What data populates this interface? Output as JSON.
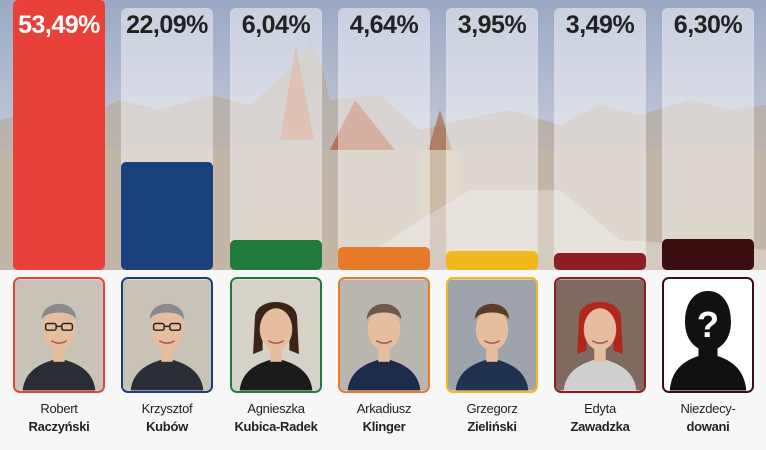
{
  "chart_data": {
    "type": "bar",
    "ylim": [
      0,
      55
    ],
    "categories": [
      {
        "first": "Robert",
        "last": "Raczyński"
      },
      {
        "first": "Krzysztof",
        "last": "Kubów"
      },
      {
        "first": "Agnieszka",
        "last": "Kubica-Radek"
      },
      {
        "first": "Arkadiusz",
        "last": "Klinger"
      },
      {
        "first": "Grzegorz",
        "last": "Zieliński"
      },
      {
        "first": "Edyta",
        "last": "Zawadzka"
      },
      {
        "first": "Niezdecy-",
        "last": "dowani"
      }
    ],
    "values": [
      53.49,
      22.09,
      6.04,
      4.64,
      3.95,
      3.49,
      6.3
    ],
    "value_labels": [
      "53,49%",
      "22,09%",
      "6,04%",
      "4,64%",
      "3,95%",
      "3,49%",
      "6,30%"
    ],
    "colors": [
      "#e8413a",
      "#1a3f7d",
      "#1f7a3c",
      "#e87a2a",
      "#f2b81c",
      "#8e1c24",
      "#3a0e10"
    ],
    "name_bold_colors": [
      "#222222",
      "#222222",
      "#222222",
      "#222222",
      "#222222",
      "#222222",
      "#333333"
    ],
    "portraits": [
      "man-glasses",
      "man-glasses",
      "woman-dark-hair",
      "man",
      "man-young",
      "woman-red-hair",
      "unknown-silhouette"
    ]
  }
}
